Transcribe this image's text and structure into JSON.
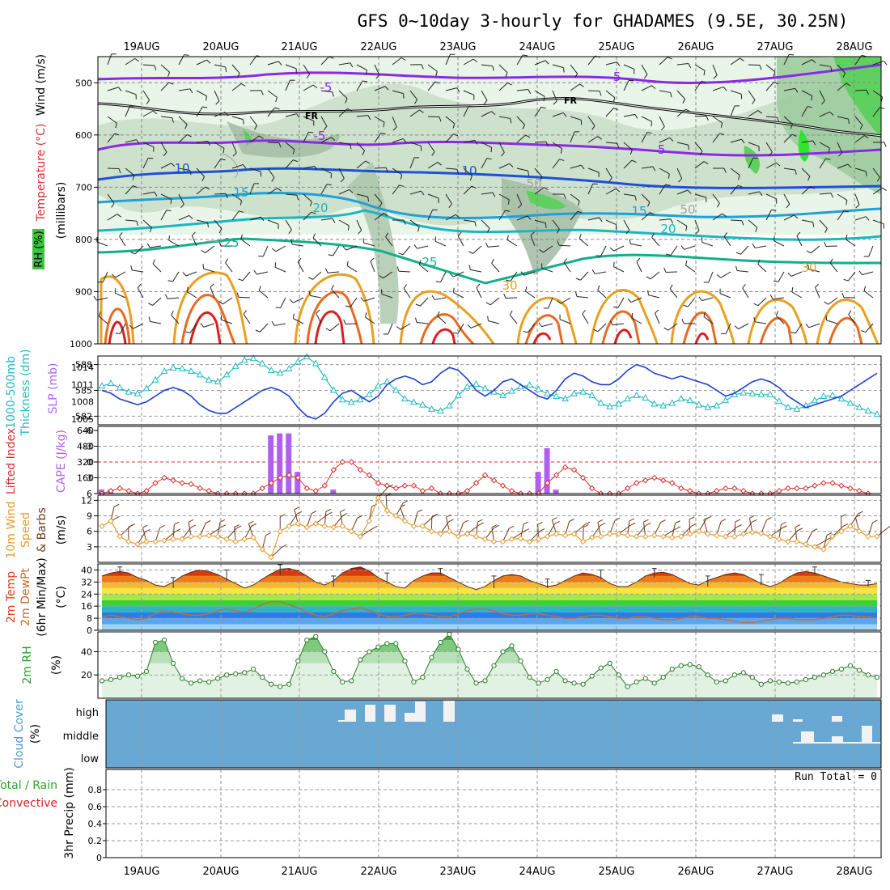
{
  "title": "GFS 0~10day 3-hourly for GHADAMES (9.5E, 30.25N)",
  "dates": [
    "19AUG",
    "20AUG",
    "21AUG",
    "22AUG",
    "23AUG",
    "24AUG",
    "25AUG",
    "26AUG",
    "27AUG",
    "28AUG"
  ],
  "colors": {
    "purple": "#8a2be2",
    "blue": "#1f4fd6",
    "cyan": "#1fb5c0",
    "teal": "#11b08a",
    "orange": "#e8a020",
    "red": "#d82020",
    "green_rh": "#3cc43c",
    "slp": "#1f3fd0",
    "thick": "#21b8c4",
    "cape": "#b060f0",
    "li": "#d83030",
    "wind": "#e89a30",
    "dew": "#c86a2a",
    "rh2m": "#2a9a2a",
    "cloud_bg": "#6aa8d4",
    "grid": "#a0a0a0"
  },
  "panels": {
    "cross": {
      "labels": [
        "Wind (m/s)",
        "Temperature (°C)",
        "RH (%)",
        "(millibars)"
      ],
      "yticks": [
        "500",
        "600",
        "700",
        "800",
        "900",
        "1000"
      ],
      "ylim": [
        450,
        1000
      ],
      "temp_labels": [
        "-5",
        "-5",
        "-5",
        "-5",
        "FR",
        "FR",
        "10",
        "10",
        "15",
        "15",
        "20",
        "20",
        "25",
        "25",
        "30",
        "30",
        "50",
        "50"
      ]
    },
    "slp": {
      "labels": [
        "1000-500mb",
        "Thickness (dm)",
        "SLP (mb)"
      ],
      "yticks_left": [
        "588",
        "585",
        "582"
      ],
      "yticks_right": [
        "1014",
        "1011",
        "1008",
        "1005"
      ]
    },
    "cape": {
      "labels": [
        "Lifted Index",
        "CAPE (J/kg)"
      ],
      "yticks_left": [
        "-6",
        "-3",
        "0",
        "3",
        "6"
      ],
      "yticks_right": [
        "640",
        "480",
        "320",
        "160"
      ]
    },
    "wind10": {
      "labels": [
        "10m Wind",
        "Speed",
        "& Barbs",
        "(m/s)"
      ],
      "yticks": [
        "12",
        "9",
        "6",
        "3"
      ]
    },
    "temp2m": {
      "labels": [
        "2m Temp",
        "2m DewPt",
        "(6hr Min/Max)",
        "(°C)"
      ],
      "yticks": [
        "40",
        "32",
        "24",
        "16",
        "8",
        "0"
      ]
    },
    "rh2m": {
      "labels": [
        "2m RH",
        "(%)"
      ],
      "yticks": [
        "40",
        "20"
      ]
    },
    "cloud": {
      "labels": [
        "Cloud Cover",
        "(%)"
      ],
      "levels": [
        "high",
        "middle",
        "low"
      ]
    },
    "precip": {
      "labels": [
        "Total / Rain",
        "Convective",
        "3hr Precip (mm)"
      ],
      "yticks": [
        "0.8",
        "0.6",
        "0.4",
        "0.2",
        "0"
      ],
      "run_total": "Run Total = 0"
    }
  },
  "chart_data": [
    {
      "type": "line",
      "title": "SLP (mb)",
      "ylim": [
        1004,
        1016
      ],
      "series": [
        {
          "name": "SLP",
          "values": [
            1010,
            1009.5,
            1008.5,
            1008,
            1007.5,
            1008,
            1009,
            1010,
            1010.5,
            1010,
            1009,
            1007.5,
            1006.5,
            1006,
            1006,
            1007,
            1008,
            1009,
            1010,
            1010.5,
            1010,
            1009,
            1007,
            1005.5,
            1005,
            1006,
            1008,
            1009.5,
            1010,
            1009,
            1008,
            1009,
            1011,
            1012,
            1012.5,
            1012,
            1011,
            1011.5,
            1013,
            1014,
            1013.5,
            1012,
            1010,
            1009,
            1010,
            1011.5,
            1012,
            1011,
            1010,
            1009,
            1008.5,
            1010,
            1012,
            1013,
            1012.5,
            1011.5,
            1011,
            1011,
            1012,
            1013.5,
            1014.5,
            1014,
            1013,
            1012.5,
            1012,
            1012.5,
            1012,
            1011.5,
            1011,
            1010,
            1009,
            1009.5,
            1010.5,
            1011.5,
            1012,
            1011.5,
            1010.5,
            1009,
            1008,
            1007,
            1007.5,
            1008,
            1008.5,
            1009,
            1010,
            1011,
            1012,
            1013
          ]
        }
      ]
    },
    {
      "type": "line",
      "title": "1000-500mb Thickness (dm)",
      "ylim": [
        581,
        589
      ],
      "series": [
        {
          "name": "Thickness",
          "values": [
            585.5,
            585.8,
            585.3,
            584.8,
            584.6,
            585.2,
            586.2,
            587.2,
            587.6,
            587.5,
            587.2,
            586.8,
            586.2,
            586,
            586.8,
            587.8,
            588.5,
            588.7,
            588.1,
            587.3,
            587,
            587.5,
            588.3,
            588.9,
            588.1,
            586.5,
            585,
            583.9,
            583.6,
            583.9,
            584.5,
            585.5,
            586,
            585,
            584,
            583.6,
            583.3,
            582.8,
            582.6,
            583.2,
            584.4,
            585.4,
            585.7,
            585.2,
            584.8,
            584.4,
            584.9,
            585.4,
            585.6,
            585.1,
            584.6,
            584.3,
            584,
            584.6,
            584.8,
            584.4,
            583.5,
            583.1,
            583.4,
            584,
            584.4,
            584.1,
            583.4,
            583.2,
            583.5,
            584,
            583.8,
            583.3,
            583,
            583.2,
            583.8,
            584.5,
            584.7,
            584.6,
            584.5,
            584.5,
            583.7,
            583,
            582.8,
            583.2,
            583.8,
            584.3,
            584.4,
            584,
            583.5,
            583,
            582.6,
            582.2
          ]
        }
      ]
    },
    {
      "type": "bar",
      "title": "CAPE (J/kg)",
      "ylim": [
        0,
        640
      ],
      "x_index": [
        0,
        1,
        19,
        20,
        21,
        22,
        23,
        26,
        49,
        50,
        51
      ],
      "values": [
        40,
        40,
        590,
        610,
        610,
        220,
        0,
        40,
        220,
        460,
        40
      ]
    },
    {
      "type": "line",
      "title": "Lifted Index",
      "ylim": [
        6,
        -6
      ],
      "series": [
        {
          "name": "LI",
          "values": [
            6,
            5.5,
            5,
            5.5,
            6,
            5.5,
            4,
            3,
            3.5,
            4,
            4.2,
            5,
            5.5,
            6,
            6,
            6,
            6,
            6,
            5,
            4,
            3,
            2.5,
            3,
            5,
            5.5,
            4.5,
            1.5,
            0,
            0,
            1.5,
            2.5,
            4,
            4.5,
            5,
            4.5,
            4.5,
            5.5,
            5,
            6,
            6,
            6,
            5.5,
            4,
            2.5,
            3.5,
            4.5,
            5.5,
            6,
            6,
            6,
            4,
            2.5,
            1,
            1.5,
            3,
            5,
            6,
            6,
            6,
            5,
            4,
            3.5,
            3,
            3.5,
            4,
            5,
            5.5,
            6,
            6,
            5.5,
            5,
            5,
            5.5,
            6,
            6,
            6,
            5.5,
            5,
            5,
            5,
            4.5,
            4,
            4,
            4.5,
            5,
            5.5,
            6
          ]
        }
      ]
    },
    {
      "type": "line",
      "title": "10m Wind Speed (m/s)",
      "ylim": [
        0,
        13
      ],
      "series": [
        {
          "name": "Speed",
          "values": [
            7,
            8,
            5,
            4,
            3.5,
            4,
            4,
            4.2,
            4.5,
            4.5,
            5,
            5,
            5.2,
            5,
            4.5,
            4,
            4.5,
            4.8,
            2.5,
            1,
            6,
            7,
            7.5,
            6.8,
            7.5,
            7,
            6.8,
            7,
            6,
            5,
            8,
            12.5,
            10,
            9,
            8,
            7,
            7,
            6,
            5.5,
            6,
            5,
            5.5,
            5,
            4.5,
            4,
            4,
            4.5,
            4.6,
            4,
            4.5,
            5,
            5.5,
            5.2,
            5.5,
            4,
            4.8,
            5,
            5.5,
            5.5,
            5.2,
            5,
            5,
            5.2,
            5,
            4.8,
            5,
            5.5,
            6,
            5.5,
            5.2,
            5,
            5,
            5.5,
            5.8,
            5.6,
            5,
            4.5,
            4,
            4,
            3.5,
            3,
            2.5,
            5,
            6,
            7,
            6,
            5,
            5
          ]
        }
      ]
    },
    {
      "type": "area",
      "title": "2m Temp (°C)",
      "ylim": [
        0,
        44
      ],
      "series": [
        {
          "name": "Temp",
          "values": [
            36,
            38,
            39,
            38,
            35,
            33,
            30,
            29,
            32,
            36,
            38.5,
            40,
            39,
            37,
            34,
            31,
            28,
            30,
            34,
            37.5,
            40.5,
            41,
            39.5,
            36,
            32,
            30,
            33,
            38,
            41,
            42,
            39.5,
            35,
            32,
            29,
            28,
            33,
            36,
            38,
            38,
            35,
            32,
            29,
            27,
            29,
            33,
            36,
            37,
            36,
            33,
            31,
            29,
            30,
            33,
            36,
            38,
            37,
            35,
            31,
            29,
            29,
            32,
            36,
            38,
            38.5,
            37,
            34,
            31,
            30,
            33,
            35,
            37,
            38,
            37,
            34,
            31,
            29,
            31,
            35,
            38,
            39,
            38,
            36,
            34,
            32,
            31,
            30,
            30,
            31
          ]
        },
        {
          "name": "DewPt",
          "values": [
            9,
            10,
            9,
            8,
            7,
            8,
            11,
            13,
            12,
            11,
            10,
            10,
            11,
            13,
            14,
            13,
            12,
            14,
            17,
            19,
            19,
            17,
            15,
            12,
            10,
            9,
            11,
            13,
            14,
            15,
            13,
            11,
            9,
            9,
            10,
            11,
            11,
            10,
            9,
            9,
            11,
            13,
            14,
            14,
            13,
            11,
            10,
            10,
            11,
            11,
            10,
            9,
            8,
            8,
            9,
            10,
            10,
            9,
            8,
            8,
            9,
            9,
            8,
            7,
            7,
            8,
            9,
            9,
            8,
            8,
            7,
            6,
            5,
            5,
            6,
            7,
            8,
            8,
            7,
            7,
            7,
            8,
            9,
            10,
            10,
            9,
            9,
            8
          ]
        }
      ]
    },
    {
      "type": "area",
      "title": "2m RH (%)",
      "ylim": [
        0,
        57
      ],
      "series": [
        {
          "name": "RH",
          "values": [
            15,
            16,
            18,
            20,
            19,
            23,
            48,
            50,
            30,
            17,
            13,
            15,
            14,
            17,
            20,
            21,
            22,
            25,
            18,
            12,
            10,
            12,
            32,
            50,
            53,
            40,
            23,
            14,
            15,
            33,
            40,
            44,
            47,
            47,
            32,
            14,
            18,
            35,
            48,
            55,
            42,
            25,
            13,
            15,
            28,
            40,
            45,
            32,
            18,
            13,
            16,
            23,
            15,
            13,
            12,
            19,
            26,
            30,
            20,
            10,
            14,
            17,
            13,
            18,
            25,
            28,
            29,
            27,
            20,
            14,
            15,
            20,
            22,
            18,
            12,
            15,
            14,
            13,
            14,
            16,
            18,
            20,
            23,
            25,
            28,
            24,
            20,
            18
          ]
        }
      ]
    }
  ]
}
